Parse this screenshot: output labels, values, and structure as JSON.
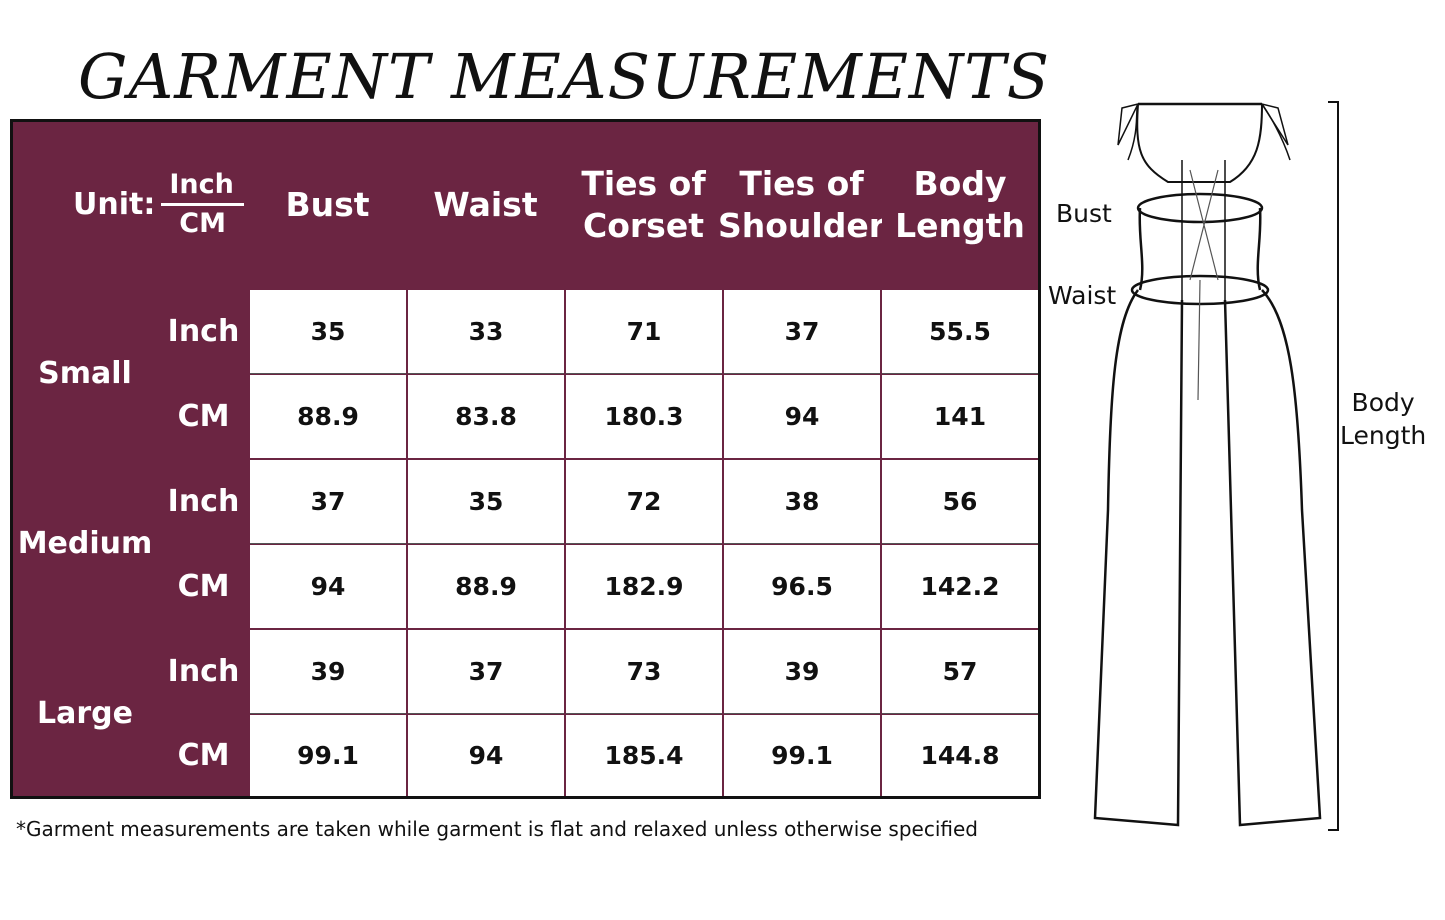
{
  "title": "GARMENT MEASUREMENTS",
  "colors": {
    "header_bg": "#6b2542",
    "header_text": "#ffffff",
    "cell_bg": "#ffffff"
  },
  "table": {
    "unit_label": "Unit:",
    "unit_top": "Inch",
    "unit_bottom": "CM",
    "columns": [
      {
        "line1": "Bust",
        "line2": ""
      },
      {
        "line1": "Waist",
        "line2": ""
      },
      {
        "line1": "Ties of",
        "line2": "Corset"
      },
      {
        "line1": "Ties of",
        "line2": "Shoulder"
      },
      {
        "line1": "Body",
        "line2": "Length"
      }
    ],
    "sizes": [
      {
        "name": "Small",
        "rows": [
          {
            "unit": "Inch",
            "values": [
              "35",
              "33",
              "71",
              "37",
              "55.5"
            ]
          },
          {
            "unit": "CM",
            "values": [
              "88.9",
              "83.8",
              "180.3",
              "94",
              "141"
            ]
          }
        ]
      },
      {
        "name": "Medium",
        "rows": [
          {
            "unit": "Inch",
            "values": [
              "37",
              "35",
              "72",
              "38",
              "56"
            ]
          },
          {
            "unit": "CM",
            "values": [
              "94",
              "88.9",
              "182.9",
              "96.5",
              "142.2"
            ]
          }
        ]
      },
      {
        "name": "Large",
        "rows": [
          {
            "unit": "Inch",
            "values": [
              "39",
              "37",
              "73",
              "39",
              "57"
            ]
          },
          {
            "unit": "CM",
            "values": [
              "99.1",
              "94",
              "185.4",
              "99.1",
              "144.8"
            ]
          }
        ]
      }
    ]
  },
  "footnote": "*Garment measurements are taken while garment is flat and relaxed unless otherwise specified",
  "figure": {
    "bust_label": "Bust",
    "waist_label": "Waist",
    "length_label_1": "Body",
    "length_label_2": "Length"
  }
}
